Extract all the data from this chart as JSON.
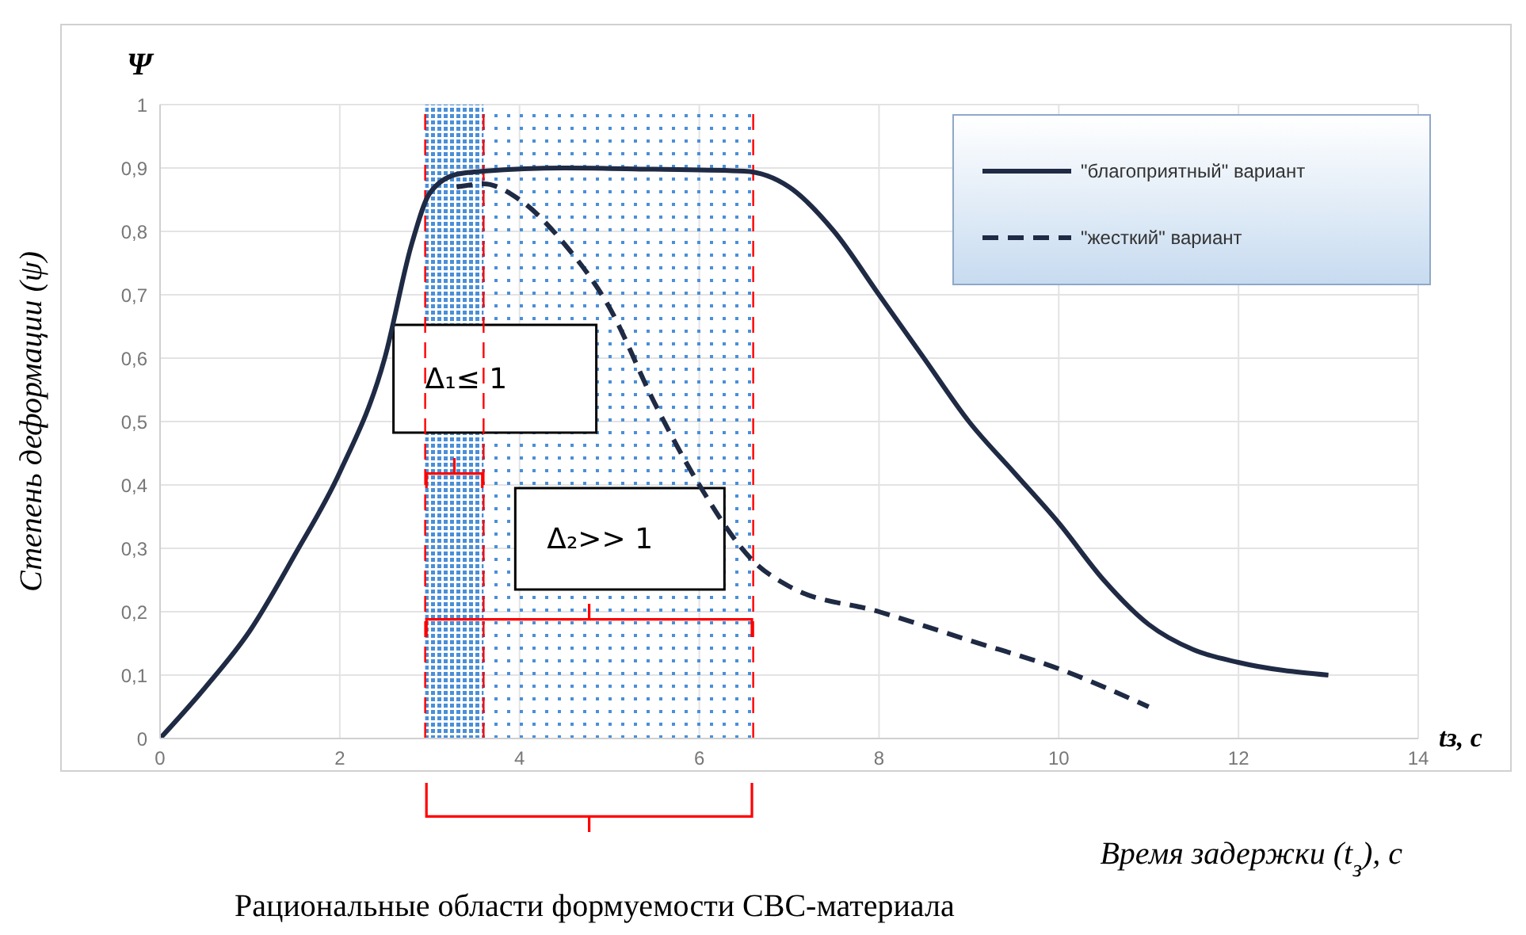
{
  "chart_data": {
    "type": "line",
    "xlabel": "Время задержки (t$_{з}$), с",
    "ylabel": "Степень деформации (ψ)",
    "xlim": [
      0,
      14
    ],
    "xticks": [
      0,
      2,
      4,
      6,
      8,
      10,
      12,
      14
    ],
    "ylim": [
      0,
      1
    ],
    "yticks": [
      0,
      {
        "value": 0.1,
        "label": "0,1"
      },
      {
        "value": 0.2,
        "label": "0,2"
      },
      {
        "value": 0.3,
        "label": "0,3"
      },
      {
        "value": 0.4,
        "label": "0,4"
      },
      {
        "value": 0.5,
        "label": "0,5"
      },
      {
        "value": 0.6,
        "label": "0,6"
      },
      {
        "value": 0.7,
        "label": "0,7"
      },
      {
        "value": 0.8,
        "label": "0,8"
      },
      {
        "value": 0.9,
        "label": "0,9"
      },
      1
    ],
    "grid": true,
    "legend": "top right",
    "marker": "none",
    "series": [
      {
        "name": "\"благоприятный\" вариант",
        "color": "#1f2a44",
        "line_style": "solid",
        "x": [
          0,
          0.5,
          1,
          1.5,
          2,
          2.5,
          2.8,
          3,
          3.3,
          3.6,
          4.5,
          5.5,
          6.5,
          7,
          7.5,
          8,
          8.5,
          9,
          9.5,
          10,
          10.5,
          11,
          11.5,
          12,
          13
        ],
        "values": [
          0,
          0.08,
          0.17,
          0.29,
          0.42,
          0.6,
          0.78,
          0.86,
          0.89,
          0.895,
          0.9,
          0.898,
          0.895,
          0.87,
          0.8,
          0.7,
          0.6,
          0.5,
          0.42,
          0.34,
          0.25,
          0.18,
          0.14,
          0.12,
          0.1
        ]
      },
      {
        "name": "\"жесткий\" вариант",
        "color": "#1f2a44",
        "line_style": "dashed",
        "x": [
          3.3,
          3.6,
          4,
          4.5,
          5,
          5.5,
          6,
          6.6,
          7,
          8,
          9,
          10,
          11
        ],
        "values": [
          0.87,
          0.875,
          0.85,
          0.78,
          0.68,
          0.53,
          0.4,
          0.28,
          0.24,
          0.2,
          0.155,
          0.11,
          0.05
        ]
      }
    ],
    "ref_lines": [
      {
        "axis": "x",
        "value": 2.95,
        "color": "#ff0000",
        "line_style": "dashed"
      },
      {
        "axis": "x",
        "value": 3.6,
        "color": "#ff0000",
        "line_style": "dashed"
      },
      {
        "axis": "x",
        "value": 6.6,
        "color": "#ff0000",
        "line_style": "dashed"
      }
    ],
    "bands": [
      {
        "axis": "x",
        "from": 2.95,
        "to": 3.6,
        "label": "Δ₁≤ 1",
        "color": "#4a8fd8"
      },
      {
        "axis": "x",
        "from": 3.6,
        "to": 6.6,
        "label": "Δ₂>> 1",
        "color": "#4a8fd8"
      }
    ],
    "annotations": [
      "Ψ",
      "tз, с",
      "Рациональные области формуемости СВС-материала"
    ]
  }
}
